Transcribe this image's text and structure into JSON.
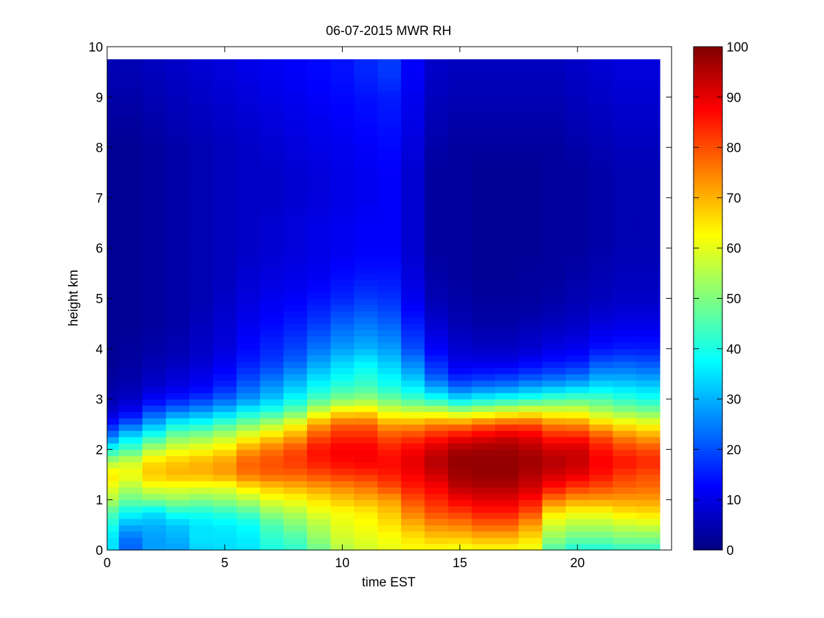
{
  "chart_data": {
    "type": "heatmap",
    "title": "06-07-2015 MWR RH",
    "xlabel": "time EST",
    "ylabel": "height km",
    "xlim": [
      0,
      24
    ],
    "ylim": [
      0,
      10
    ],
    "xticks": [
      0,
      5,
      10,
      15,
      20
    ],
    "yticks": [
      0,
      1,
      2,
      3,
      4,
      5,
      6,
      7,
      8,
      9,
      10
    ],
    "data_extent": {
      "x": [
        0,
        23.5
      ],
      "y": [
        0,
        9.75
      ]
    },
    "colorbar": {
      "colormap": "jet",
      "range": [
        0,
        100
      ],
      "ticks": [
        0,
        10,
        20,
        30,
        40,
        50,
        60,
        70,
        80,
        90,
        100
      ]
    },
    "time_columns": [
      0,
      1,
      2,
      3,
      4,
      5,
      6,
      7,
      8,
      9,
      10,
      11,
      12,
      13,
      14,
      15,
      16,
      17,
      18,
      19,
      20,
      21,
      22,
      23
    ],
    "height_profile_km": [
      0.0,
      0.25,
      0.5,
      0.75,
      1.0,
      1.25,
      1.5,
      1.75,
      2.0,
      2.25,
      2.5,
      2.75,
      3.0,
      3.25,
      3.5,
      3.75,
      4.0,
      4.5,
      5.0,
      5.5,
      6.0,
      6.5,
      7.0,
      7.5,
      8.0,
      8.5,
      9.0,
      9.5,
      9.75
    ],
    "rh_values": [
      [
        35,
        35,
        40,
        45,
        55,
        60,
        65,
        55,
        40,
        25,
        15,
        8,
        5,
        4,
        3,
        2,
        2,
        2,
        2,
        2,
        2,
        2,
        2,
        2,
        2,
        3,
        4,
        5,
        5
      ],
      [
        22,
        24,
        30,
        38,
        48,
        55,
        62,
        58,
        45,
        35,
        22,
        12,
        7,
        5,
        4,
        3,
        3,
        2,
        2,
        2,
        2,
        2,
        2,
        2,
        2,
        3,
        4,
        5,
        5
      ],
      [
        28,
        28,
        30,
        35,
        50,
        60,
        68,
        66,
        55,
        42,
        30,
        20,
        12,
        8,
        6,
        5,
        4,
        3,
        3,
        3,
        3,
        3,
        3,
        3,
        3,
        4,
        5,
        6,
        6
      ],
      [
        28,
        30,
        32,
        40,
        52,
        60,
        70,
        68,
        60,
        50,
        38,
        25,
        15,
        10,
        8,
        6,
        5,
        4,
        4,
        4,
        4,
        4,
        4,
        4,
        4,
        5,
        6,
        7,
        7
      ],
      [
        33,
        35,
        35,
        40,
        50,
        60,
        70,
        70,
        62,
        52,
        40,
        28,
        18,
        12,
        10,
        8,
        7,
        6,
        5,
        5,
        5,
        5,
        5,
        5,
        5,
        6,
        7,
        8,
        8
      ],
      [
        34,
        35,
        36,
        42,
        52,
        60,
        72,
        72,
        65,
        56,
        45,
        32,
        22,
        16,
        13,
        11,
        9,
        8,
        7,
        6,
        6,
        6,
        6,
        6,
        6,
        7,
        8,
        9,
        9
      ],
      [
        35,
        36,
        38,
        45,
        55,
        65,
        76,
        78,
        72,
        62,
        50,
        38,
        27,
        22,
        18,
        15,
        13,
        11,
        9,
        8,
        7,
        7,
        7,
        7,
        7,
        8,
        9,
        10,
        10
      ],
      [
        40,
        42,
        45,
        52,
        60,
        68,
        78,
        80,
        76,
        67,
        55,
        42,
        32,
        27,
        22,
        18,
        16,
        13,
        11,
        9,
        8,
        8,
        7,
        7,
        8,
        9,
        10,
        11,
        11
      ],
      [
        42,
        45,
        50,
        55,
        62,
        70,
        78,
        82,
        80,
        72,
        62,
        48,
        38,
        32,
        27,
        22,
        19,
        15,
        12,
        10,
        9,
        9,
        8,
        8,
        9,
        10,
        11,
        12,
        12
      ],
      [
        48,
        52,
        55,
        60,
        65,
        72,
        80,
        85,
        86,
        80,
        72,
        58,
        45,
        38,
        33,
        28,
        24,
        18,
        14,
        11,
        10,
        10,
        9,
        9,
        10,
        11,
        12,
        13,
        13
      ],
      [
        55,
        58,
        60,
        62,
        68,
        74,
        82,
        87,
        88,
        84,
        78,
        65,
        50,
        42,
        37,
        33,
        28,
        22,
        16,
        13,
        11,
        11,
        10,
        10,
        11,
        12,
        13,
        14,
        14
      ],
      [
        58,
        60,
        62,
        64,
        70,
        76,
        83,
        88,
        88,
        84,
        78,
        66,
        52,
        44,
        40,
        36,
        30,
        24,
        18,
        14,
        12,
        12,
        11,
        11,
        12,
        13,
        14,
        16,
        16
      ],
      [
        60,
        62,
        65,
        68,
        72,
        80,
        85,
        87,
        85,
        80,
        72,
        60,
        48,
        40,
        36,
        32,
        28,
        22,
        17,
        14,
        12,
        12,
        12,
        12,
        13,
        14,
        15,
        18,
        18
      ],
      [
        62,
        65,
        70,
        75,
        80,
        85,
        88,
        90,
        88,
        82,
        72,
        58,
        44,
        36,
        30,
        25,
        20,
        15,
        11,
        9,
        8,
        8,
        8,
        8,
        9,
        10,
        11,
        12,
        12
      ],
      [
        62,
        68,
        74,
        80,
        84,
        88,
        92,
        95,
        92,
        85,
        75,
        58,
        40,
        28,
        20,
        16,
        12,
        8,
        5,
        4,
        3,
        3,
        3,
        3,
        4,
        5,
        6,
        7,
        7
      ],
      [
        60,
        68,
        75,
        82,
        88,
        94,
        97,
        98,
        96,
        88,
        75,
        55,
        35,
        22,
        14,
        10,
        8,
        5,
        4,
        3,
        3,
        3,
        3,
        3,
        3,
        4,
        5,
        6,
        6
      ],
      [
        62,
        70,
        78,
        85,
        90,
        95,
        98,
        98,
        97,
        90,
        78,
        58,
        38,
        24,
        15,
        10,
        7,
        4,
        3,
        2,
        2,
        2,
        2,
        2,
        3,
        4,
        5,
        6,
        6
      ],
      [
        62,
        70,
        78,
        85,
        90,
        95,
        98,
        98,
        97,
        92,
        80,
        60,
        40,
        25,
        16,
        10,
        7,
        4,
        3,
        2,
        2,
        2,
        2,
        2,
        3,
        4,
        5,
        6,
        6
      ],
      [
        60,
        66,
        72,
        80,
        86,
        92,
        95,
        97,
        95,
        90,
        80,
        62,
        42,
        28,
        18,
        12,
        8,
        5,
        3,
        3,
        2,
        2,
        2,
        2,
        3,
        4,
        5,
        6,
        6
      ],
      [
        45,
        52,
        58,
        65,
        76,
        86,
        92,
        95,
        92,
        85,
        75,
        60,
        45,
        30,
        20,
        14,
        10,
        6,
        4,
        3,
        3,
        3,
        3,
        3,
        3,
        4,
        5,
        6,
        6
      ],
      [
        40,
        48,
        55,
        62,
        72,
        82,
        90,
        93,
        92,
        85,
        74,
        60,
        46,
        32,
        22,
        15,
        11,
        7,
        5,
        4,
        3,
        3,
        3,
        3,
        4,
        5,
        6,
        7,
        7
      ],
      [
        40,
        48,
        55,
        62,
        72,
        80,
        86,
        88,
        86,
        80,
        68,
        55,
        45,
        35,
        27,
        20,
        14,
        9,
        6,
        5,
        4,
        4,
        4,
        4,
        5,
        6,
        7,
        8,
        8
      ],
      [
        42,
        50,
        57,
        65,
        72,
        78,
        82,
        86,
        82,
        75,
        64,
        52,
        42,
        34,
        27,
        21,
        15,
        10,
        7,
        6,
        5,
        5,
        5,
        5,
        6,
        7,
        8,
        9,
        9
      ],
      [
        42,
        50,
        58,
        66,
        72,
        77,
        80,
        84,
        80,
        72,
        62,
        50,
        40,
        33,
        26,
        20,
        15,
        10,
        7,
        6,
        5,
        5,
        5,
        5,
        6,
        7,
        8,
        9,
        9
      ]
    ]
  }
}
